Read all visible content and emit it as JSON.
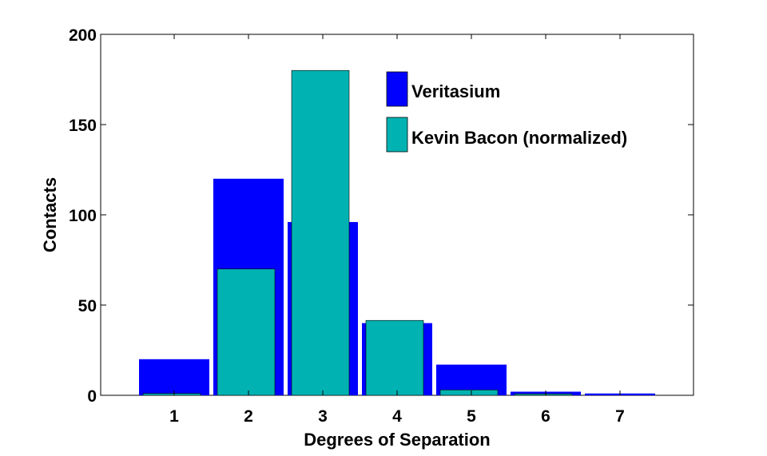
{
  "chart_data": {
    "type": "bar",
    "title": "",
    "xlabel": "Degrees of Separation",
    "ylabel": "Contacts",
    "categories": [
      "1",
      "2",
      "3",
      "4",
      "5",
      "6",
      "7"
    ],
    "ylim": [
      0,
      200
    ],
    "yticks": [
      "0",
      "50",
      "100",
      "150",
      "200"
    ],
    "grid": false,
    "legend_position": "top-right",
    "series": [
      {
        "name": "Veritasium",
        "color": "#0000ff",
        "values": [
          20,
          120,
          96,
          40,
          17,
          2,
          1
        ]
      },
      {
        "name": "Kevin Bacon (normalized)",
        "color": "#00b2b2",
        "values": [
          1,
          70,
          180,
          41.5,
          3,
          0.8,
          0
        ]
      }
    ]
  }
}
